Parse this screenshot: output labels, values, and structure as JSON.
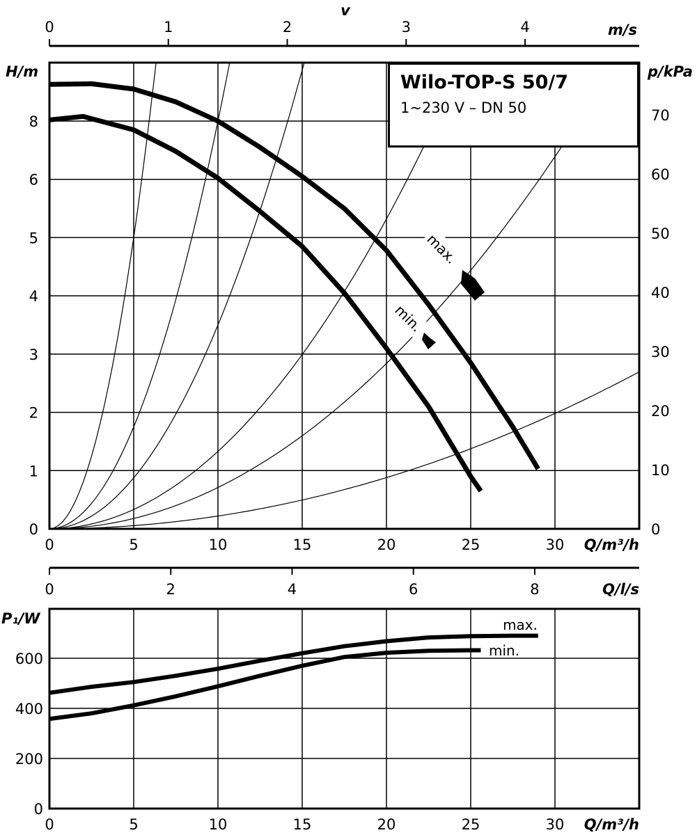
{
  "title_box": {
    "model": "Wilo-TOP-S 50/7",
    "spec": "1~230 V – DN 50"
  },
  "chart_data": [
    {
      "type": "line",
      "name_id": "pump-curve",
      "xlabel": "Q/m³/h",
      "ylabel_left": "H/m",
      "ylabel_right": "p/kPa",
      "top_axis": {
        "label": "v",
        "unit": "m/s",
        "ticks": [
          0,
          1,
          2,
          3,
          4
        ],
        "max_at_q": 35
      },
      "xlim": [
        0,
        35
      ],
      "ylim": [
        0,
        8
      ],
      "x_ticks": [
        0,
        5,
        10,
        15,
        20,
        25,
        30
      ],
      "y_ticks": [
        0,
        1,
        2,
        3,
        4,
        5,
        6,
        8
      ],
      "right_ticks": [
        0,
        10,
        20,
        30,
        40,
        50,
        60,
        70
      ],
      "series": [
        {
          "name": "max.",
          "x": [
            0,
            2.5,
            5,
            7.5,
            10,
            12.5,
            15,
            17.5,
            20,
            22.5,
            25,
            27.5,
            29
          ],
          "y": [
            7.63,
            7.64,
            7.55,
            7.33,
            7.0,
            6.55,
            6.05,
            5.5,
            4.78,
            3.85,
            2.85,
            1.75,
            1.03
          ]
        },
        {
          "name": "min.",
          "x": [
            0,
            2,
            5,
            7.5,
            10,
            12.5,
            15,
            17.5,
            20,
            22.5,
            25,
            25.6
          ],
          "y": [
            7.02,
            7.08,
            6.85,
            6.48,
            6.02,
            5.45,
            4.85,
            4.05,
            3.1,
            2.1,
            0.9,
            0.65
          ]
        }
      ],
      "system_curves": [
        {
          "k": 0.2
        },
        {
          "k": 0.07
        },
        {
          "k": 0.035
        },
        {
          "k": 0.0133
        },
        {
          "k": 0.0071
        },
        {
          "k": 0.0022
        }
      ],
      "annotations": [
        "max.",
        "min."
      ]
    },
    {
      "type": "line",
      "name_id": "power-curve",
      "xlabel": "Q/m³/h",
      "top_axis": {
        "unit": "Q/l/s",
        "ticks": [
          0,
          2,
          4,
          6,
          8
        ],
        "max_at_q": 35
      },
      "ylabel": "P₁/W",
      "xlim": [
        0,
        35
      ],
      "ylim": [
        0,
        800
      ],
      "x_ticks": [
        0,
        5,
        10,
        15,
        20,
        25,
        30
      ],
      "y_ticks": [
        0,
        200,
        400,
        600
      ],
      "series": [
        {
          "name": "max.",
          "x": [
            0,
            2.5,
            5,
            7.5,
            10,
            12.5,
            15,
            17.5,
            20,
            22.5,
            25,
            27.5,
            29
          ],
          "y": [
            462,
            486,
            505,
            530,
            558,
            590,
            620,
            648,
            668,
            683,
            688,
            690,
            690
          ]
        },
        {
          "name": "min.",
          "x": [
            0,
            2.5,
            5,
            7.5,
            10,
            12.5,
            15,
            17.5,
            20,
            22.5,
            25,
            25.6
          ],
          "y": [
            358,
            380,
            412,
            448,
            488,
            530,
            570,
            605,
            622,
            630,
            632,
            632
          ]
        }
      ]
    }
  ]
}
